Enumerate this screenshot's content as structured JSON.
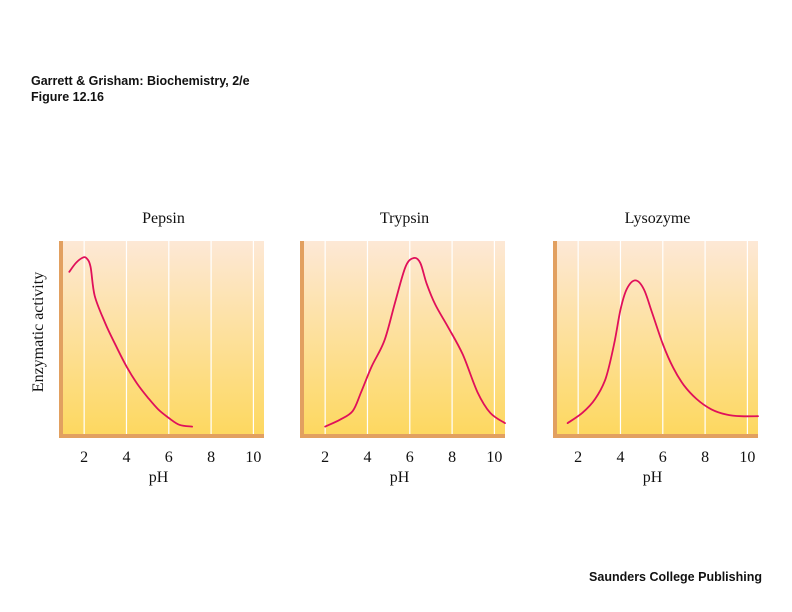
{
  "header": {
    "line1": "Garrett & Grisham: Biochemistry, 2/e",
    "line2": "Figure 12.16"
  },
  "footer": {
    "publisher": "Saunders College Publishing"
  },
  "colors": {
    "curve": "#e0105a",
    "panel_top": "#fde8d6",
    "panel_bottom": "#fdd860",
    "axis": "#e2a060",
    "grid": "#ffffff"
  },
  "chart_data": [
    {
      "type": "line",
      "title": "Pepsin",
      "xlabel": "pH",
      "ylabel": "Enzymatic activity",
      "xlim": [
        1,
        10.5
      ],
      "ylim": [
        0,
        1
      ],
      "xticks": [
        2,
        4,
        6,
        8,
        10
      ],
      "grid": true,
      "series": [
        {
          "x": [
            1.3,
            1.6,
            1.9,
            2.1,
            2.3,
            2.5,
            3.0,
            3.5,
            4.0,
            4.5,
            5.0,
            5.5,
            6.0,
            6.5,
            7.1
          ],
          "y": [
            0.92,
            0.97,
            1.0,
            1.0,
            0.95,
            0.78,
            0.62,
            0.49,
            0.37,
            0.27,
            0.19,
            0.12,
            0.07,
            0.03,
            0.02
          ]
        }
      ]
    },
    {
      "type": "line",
      "title": "Trypsin",
      "xlabel": "pH",
      "ylabel": "",
      "xlim": [
        1,
        10.5
      ],
      "ylim": [
        0,
        1
      ],
      "xticks": [
        2,
        4,
        6,
        8,
        10
      ],
      "grid": true,
      "series": [
        {
          "x": [
            2.0,
            2.7,
            3.3,
            3.7,
            4.2,
            4.8,
            5.3,
            5.8,
            6.2,
            6.5,
            6.8,
            7.2,
            7.8,
            8.5,
            9.2,
            9.8,
            10.5
          ],
          "y": [
            0.02,
            0.06,
            0.11,
            0.22,
            0.37,
            0.52,
            0.74,
            0.95,
            1.0,
            0.97,
            0.85,
            0.73,
            0.6,
            0.44,
            0.22,
            0.1,
            0.04
          ]
        }
      ]
    },
    {
      "type": "line",
      "title": "Lysozyme",
      "xlabel": "pH",
      "ylabel": "",
      "xlim": [
        1,
        10.5
      ],
      "ylim": [
        0,
        1
      ],
      "xticks": [
        2,
        4,
        6,
        8,
        10
      ],
      "grid": true,
      "series": [
        {
          "x": [
            1.5,
            2.2,
            2.8,
            3.3,
            3.7,
            4.0,
            4.3,
            4.7,
            5.1,
            5.5,
            6.0,
            6.5,
            7.0,
            7.6,
            8.3,
            9.0,
            9.7,
            10.5
          ],
          "y": [
            0.04,
            0.1,
            0.18,
            0.3,
            0.5,
            0.7,
            0.82,
            0.87,
            0.82,
            0.68,
            0.5,
            0.36,
            0.26,
            0.18,
            0.12,
            0.09,
            0.08,
            0.08
          ]
        }
      ]
    }
  ]
}
